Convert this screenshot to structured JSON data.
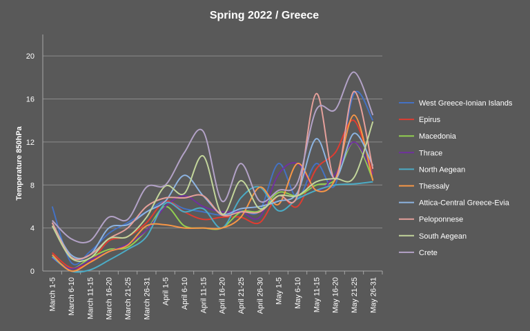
{
  "chart_data": {
    "type": "line",
    "title": "Spring 2022 / Greece",
    "xlabel": "",
    "ylabel": "Temperature 850hPa",
    "ylim": [
      0,
      22
    ],
    "yticks": [
      0,
      4,
      8,
      12,
      16,
      20
    ],
    "grid": "horizontal",
    "legend_position": "right",
    "background_color": "#595959",
    "categories": [
      "March 1-5",
      "March 6-10",
      "March 11-15",
      "March 16-20",
      "March 21-25",
      "March 26-31",
      "April 1-5",
      "April 6-10",
      "April 11-15",
      "April 16-20",
      "April 21-25",
      "April 26-30",
      "May 1-5",
      "May 6-10",
      "May 11-15",
      "May 16-20",
      "May 21-25",
      "May 26-31"
    ],
    "series": [
      {
        "name": "West Greece-Ionian Islands",
        "color": "#4472c4",
        "values": [
          6.0,
          0.8,
          1.8,
          3.5,
          4.5,
          5.5,
          6.5,
          5.8,
          5.5,
          5.2,
          5.6,
          5.6,
          10.0,
          6.8,
          10.0,
          8.0,
          16.5,
          14.0
        ]
      },
      {
        "name": "Epirus",
        "color": "#e03c31",
        "values": [
          1.7,
          0.3,
          0.8,
          2.8,
          3.2,
          4.5,
          6.5,
          5.5,
          4.8,
          5.0,
          5.0,
          4.5,
          7.0,
          6.0,
          9.5,
          11.0,
          14.0,
          9.0
        ]
      },
      {
        "name": "Macedonia",
        "color": "#92d050",
        "values": [
          1.3,
          0.2,
          1.2,
          2.0,
          2.2,
          3.8,
          6.0,
          4.2,
          4.0,
          4.0,
          5.5,
          5.6,
          7.3,
          7.0,
          8.0,
          8.5,
          12.0,
          8.5
        ]
      },
      {
        "name": "Thrace",
        "color": "#7030a0",
        "values": [
          1.2,
          0.2,
          1.0,
          1.8,
          2.5,
          3.8,
          6.0,
          7.0,
          6.0,
          5.5,
          5.5,
          5.0,
          9.0,
          10.0,
          7.5,
          9.0,
          12.0,
          9.0
        ]
      },
      {
        "name": "North Aegean",
        "color": "#4bacc6",
        "values": [
          1.3,
          0.0,
          0.1,
          1.0,
          2.0,
          3.2,
          6.3,
          5.5,
          5.8,
          4.0,
          6.8,
          7.8,
          5.6,
          6.7,
          7.5,
          8.0,
          8.1,
          8.3
        ]
      },
      {
        "name": "Thessaly",
        "color": "#f79646",
        "values": [
          1.5,
          -0.2,
          0.8,
          1.8,
          2.4,
          4.2,
          4.3,
          4.0,
          4.0,
          4.0,
          5.0,
          7.8,
          6.2,
          10.0,
          7.5,
          8.5,
          14.5,
          8.4
        ]
      },
      {
        "name": "Attica-Central Greece-Evia",
        "color": "#8db4e2",
        "values": [
          4.5,
          1.5,
          1.5,
          4.0,
          4.3,
          5.5,
          6.5,
          8.9,
          7.0,
          5.3,
          5.8,
          6.0,
          6.5,
          7.3,
          12.3,
          8.6,
          12.8,
          9.8
        ]
      },
      {
        "name": "Peloponnese",
        "color": "#e6a09b",
        "values": [
          4.5,
          1.3,
          1.5,
          3.0,
          4.0,
          6.0,
          6.8,
          6.8,
          7.0,
          5.2,
          5.5,
          5.5,
          7.0,
          7.0,
          16.5,
          8.5,
          16.7,
          9.5
        ]
      },
      {
        "name": "South Aegean",
        "color": "#c3d69b",
        "values": [
          4.2,
          1.2,
          1.2,
          3.0,
          3.2,
          5.0,
          7.9,
          7.2,
          10.7,
          5.3,
          8.4,
          5.8,
          7.0,
          7.0,
          8.3,
          8.6,
          8.7,
          13.9
        ]
      },
      {
        "name": "Crete",
        "color": "#b3a2c7",
        "values": [
          4.7,
          3.0,
          2.8,
          5.0,
          4.8,
          7.8,
          8.0,
          11.0,
          13.0,
          6.5,
          10.0,
          6.5,
          7.5,
          8.2,
          15.0,
          15.0,
          18.5,
          14.5
        ]
      }
    ]
  }
}
